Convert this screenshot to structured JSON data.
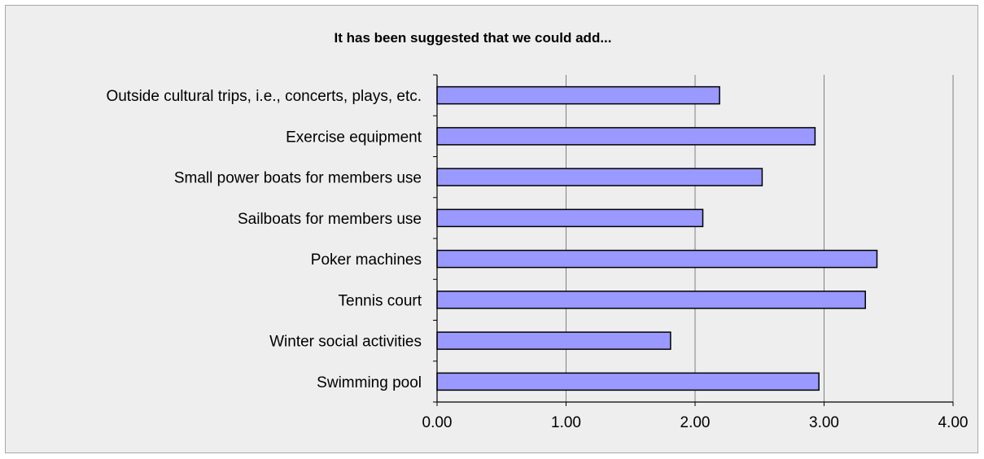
{
  "chart_data": {
    "type": "bar",
    "orientation": "horizontal",
    "title": "It has been suggested that we could add...",
    "xlabel": "",
    "ylabel": "",
    "categories": [
      "Outside cultural trips, i.e., concerts, plays, etc.",
      "Exercise equipment",
      "Small power boats for members use",
      "Sailboats for members use",
      "Poker machines",
      "Tennis court",
      "Winter social activities",
      "Swimming pool"
    ],
    "values": [
      2.19,
      2.93,
      2.52,
      2.06,
      3.41,
      3.32,
      1.81,
      2.96
    ],
    "xlim": [
      0,
      4
    ],
    "xticks": [
      "0.00",
      "1.00",
      "2.00",
      "3.00",
      "4.00"
    ],
    "grid": "vertical gridlines",
    "legend": "none",
    "colors": {
      "bar_fill": "#9999ff",
      "bar_stroke": "#000000",
      "background": "#eeeeee",
      "gridline": "#808080"
    }
  }
}
